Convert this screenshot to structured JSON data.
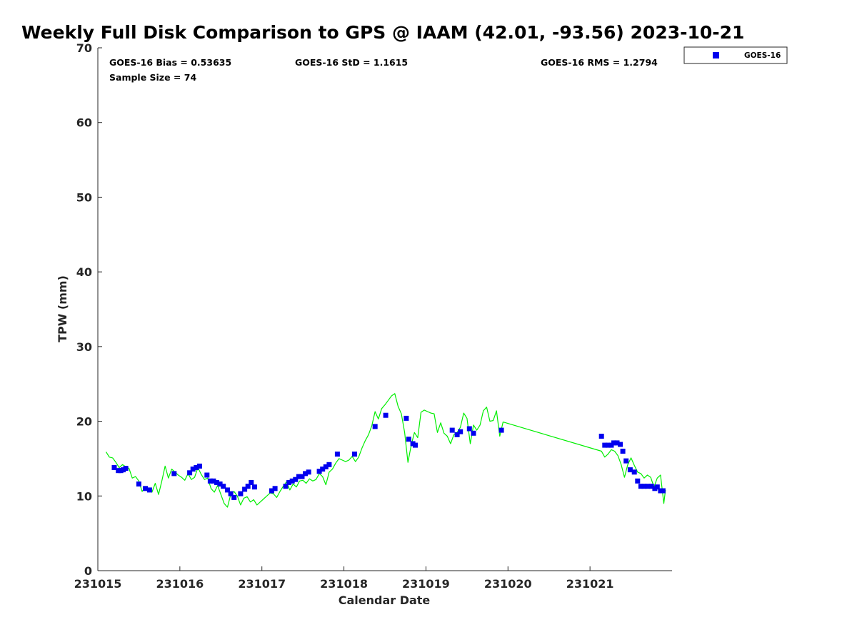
{
  "chart_data": {
    "type": "line",
    "title": "Weekly Full Disk Comparison to GPS @ IAAM (42.01, -93.56) 2023-10-21",
    "xlabel": "Calendar Date",
    "ylabel": "TPW (mm)",
    "xlim": [
      231015,
      231022
    ],
    "ylim": [
      0,
      70
    ],
    "x_ticks": [
      "231015",
      "231016",
      "231017",
      "231018",
      "231019",
      "231020",
      "231021"
    ],
    "y_ticks": [
      "0",
      "10",
      "20",
      "30",
      "40",
      "50",
      "60",
      "70"
    ],
    "grid": false,
    "legend_position": "top-right",
    "stats": {
      "bias": "GOES-16 Bias = 0.53635",
      "std": "GOES-16 StD = 1.1615",
      "rms": "GOES-16 RMS = 1.2794",
      "sample": "Sample Size = 74"
    },
    "colors": {
      "goes": "#0000ee",
      "gps": "#00ee00"
    },
    "series": [
      {
        "name": "GOES-16",
        "marker": "square",
        "color": "#0000ee",
        "x": [
          231015.2,
          231015.25,
          231015.28,
          231015.31,
          231015.34,
          231015.5,
          231015.58,
          231015.63,
          231015.93,
          231016.12,
          231016.16,
          231016.2,
          231016.24,
          231016.33,
          231016.37,
          231016.41,
          231016.45,
          231016.49,
          231016.53,
          231016.58,
          231016.62,
          231016.66,
          231016.74,
          231016.79,
          231016.83,
          231016.87,
          231016.91,
          231017.12,
          231017.16,
          231017.29,
          231017.33,
          231017.37,
          231017.41,
          231017.45,
          231017.49,
          231017.53,
          231017.57,
          231017.7,
          231017.74,
          231017.78,
          231017.82,
          231017.92,
          231018.13,
          231018.38,
          231018.51,
          231018.76,
          231018.79,
          231018.84,
          231018.87,
          231019.32,
          231019.38,
          231019.42,
          231019.53,
          231019.58,
          231019.92,
          231021.14,
          231021.18,
          231021.22,
          231021.26,
          231021.29,
          231021.33,
          231021.37,
          231021.4,
          231021.44,
          231021.49,
          231021.54,
          231021.58,
          231021.62,
          231021.66,
          231021.7,
          231021.75,
          231021.79,
          231021.82,
          231021.86,
          231021.89
        ],
        "values": [
          13.8,
          13.4,
          13.4,
          13.5,
          13.7,
          11.6,
          11.0,
          10.8,
          13.0,
          13.1,
          13.6,
          13.8,
          14.0,
          12.8,
          12.0,
          12.0,
          11.8,
          11.6,
          11.3,
          10.8,
          10.3,
          9.8,
          10.3,
          10.9,
          11.3,
          11.8,
          11.2,
          10.7,
          11.0,
          11.3,
          11.8,
          12.0,
          12.2,
          12.6,
          12.6,
          13.0,
          13.2,
          13.3,
          13.6,
          13.9,
          14.2,
          15.6,
          15.6,
          19.3,
          20.8,
          20.4,
          17.6,
          17.0,
          16.8,
          18.8,
          18.2,
          18.6,
          19.0,
          18.4,
          18.8,
          18.0,
          16.8,
          16.8,
          16.8,
          17.1,
          17.1,
          16.9,
          16.0,
          14.7,
          13.5,
          13.2,
          12.0,
          11.3,
          11.3,
          11.3,
          11.3,
          11.0,
          11.2,
          10.7,
          10.7
        ]
      },
      {
        "name": "",
        "marker": "line",
        "color": "#00ee00",
        "x": [
          231015.1,
          231015.14,
          231015.18,
          231015.22,
          231015.26,
          231015.3,
          231015.34,
          231015.38,
          231015.42,
          231015.46,
          231015.5,
          231015.54,
          231015.58,
          231015.62,
          231015.66,
          231015.7,
          231015.74,
          231015.78,
          231015.82,
          231015.86,
          231015.9,
          231015.94,
          231015.98,
          231016.02,
          231016.06,
          231016.1,
          231016.14,
          231016.18,
          231016.22,
          231016.26,
          231016.3,
          231016.34,
          231016.38,
          231016.42,
          231016.46,
          231016.5,
          231016.54,
          231016.58,
          231016.62,
          231016.66,
          231016.7,
          231016.74,
          231016.78,
          231016.82,
          231016.86,
          231016.9,
          231016.94,
          231016.98,
          231017.02,
          231017.06,
          231017.1,
          231017.14,
          231017.18,
          231017.22,
          231017.26,
          231017.3,
          231017.34,
          231017.38,
          231017.42,
          231017.46,
          231017.5,
          231017.54,
          231017.58,
          231017.62,
          231017.66,
          231017.7,
          231017.74,
          231017.78,
          231017.82,
          231017.86,
          231017.9,
          231017.94,
          231017.98,
          231018.02,
          231018.06,
          231018.1,
          231018.14,
          231018.18,
          231018.22,
          231018.26,
          231018.3,
          231018.34,
          231018.38,
          231018.42,
          231018.46,
          231018.5,
          231018.54,
          231018.58,
          231018.62,
          231018.66,
          231018.7,
          231018.74,
          231018.78,
          231018.82,
          231018.86,
          231018.9,
          231018.94,
          231018.98,
          231019.02,
          231019.06,
          231019.1,
          231019.14,
          231019.18,
          231019.22,
          231019.26,
          231019.3,
          231019.34,
          231019.38,
          231019.42,
          231019.46,
          231019.5,
          231019.54,
          231019.58,
          231019.62,
          231019.66,
          231019.7,
          231019.74,
          231019.78,
          231019.82,
          231019.86,
          231019.9,
          231019.94,
          231021.14,
          231021.18,
          231021.22,
          231021.26,
          231021.3,
          231021.34,
          231021.38,
          231021.42,
          231021.46,
          231021.5,
          231021.54,
          231021.58,
          231021.62,
          231021.66,
          231021.7,
          231021.74,
          231021.78,
          231021.82,
          231021.86,
          231021.9,
          231021.92
        ],
        "values": [
          15.9,
          15.2,
          15.1,
          14.5,
          13.8,
          14.2,
          13.9,
          13.7,
          12.4,
          12.6,
          12.0,
          10.6,
          11.2,
          10.9,
          10.5,
          11.7,
          10.2,
          12.0,
          14.0,
          12.4,
          13.6,
          13.2,
          12.8,
          12.5,
          12.1,
          13.0,
          12.2,
          12.5,
          13.8,
          12.9,
          12.2,
          12.4,
          11.0,
          10.5,
          11.4,
          10.2,
          9.0,
          8.5,
          10.2,
          10.6,
          10.0,
          8.8,
          9.7,
          9.9,
          9.2,
          9.5,
          8.8,
          9.2,
          9.6,
          10.0,
          10.4,
          10.3,
          9.8,
          10.6,
          11.3,
          11.9,
          10.8,
          11.6,
          11.2,
          12.0,
          12.1,
          11.7,
          12.3,
          12.0,
          12.2,
          13.0,
          12.6,
          11.5,
          13.2,
          13.6,
          14.4,
          15.0,
          14.8,
          14.6,
          14.8,
          15.3,
          14.6,
          15.2,
          16.4,
          17.4,
          18.2,
          19.4,
          21.3,
          20.3,
          21.7,
          22.2,
          22.8,
          23.4,
          23.7,
          22.0,
          21.0,
          18.5,
          14.5,
          16.8,
          18.5,
          17.8,
          21.2,
          21.5,
          21.3,
          21.1,
          21.0,
          18.5,
          19.8,
          18.4,
          18.0,
          17.0,
          18.2,
          18.5,
          19.2,
          21.1,
          20.4,
          17.0,
          19.5,
          18.8,
          19.5,
          21.4,
          21.9,
          20.0,
          20.1,
          21.4,
          18.0,
          19.9,
          16.0,
          15.2,
          15.6,
          16.2,
          16.0,
          15.4,
          14.2,
          12.5,
          14.2,
          15.1,
          14.1,
          13.2,
          13.0,
          12.4,
          12.8,
          12.5,
          11.2,
          12.4,
          12.8,
          9.0,
          10.8
        ]
      }
    ]
  }
}
